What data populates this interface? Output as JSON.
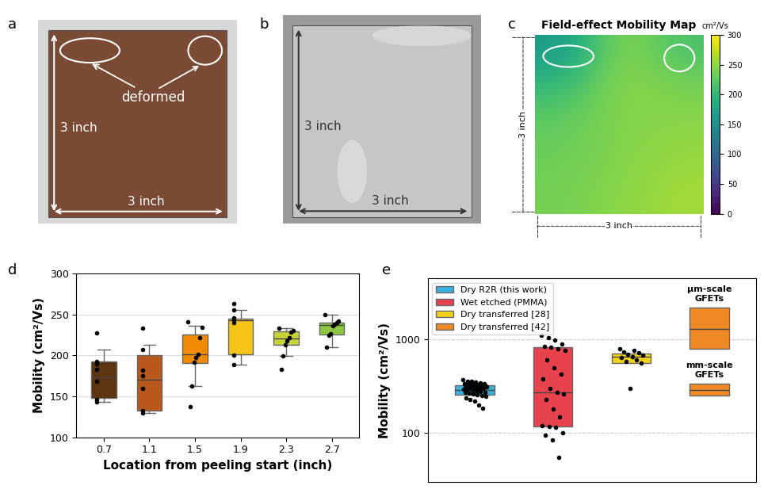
{
  "chart_data": [
    {
      "type": "image",
      "panel": "a",
      "color": "#7b4a35",
      "defect_label": "deformed",
      "height_label": "3 inch",
      "width_label": "3 inch"
    },
    {
      "type": "image",
      "panel": "b",
      "color": "#c6c6c6",
      "height_label": "3 inch",
      "width_label": "3 inch"
    },
    {
      "type": "heatmap",
      "panel": "c",
      "title": "Field-effect Mobility Map",
      "colorbar_label": "cm²/Vs",
      "height_label": "3 inch",
      "width_label": "3 inch",
      "cells": [
        [
          165,
          185,
          225,
          240,
          225,
          215
        ],
        [
          195,
          210,
          235,
          245,
          240,
          235
        ],
        [
          220,
          228,
          240,
          245,
          245,
          245
        ],
        [
          230,
          235,
          240,
          245,
          248,
          250
        ],
        [
          235,
          238,
          242,
          248,
          252,
          255
        ],
        [
          238,
          240,
          245,
          250,
          255,
          258
        ]
      ],
      "colorbar_range": [
        0,
        300
      ],
      "colorbar_ticks": [
        0,
        50,
        100,
        150,
        200,
        250,
        300
      ]
    },
    {
      "type": "box",
      "panel": "d",
      "xlabel": "Location from peeling start (inch)",
      "ylabel": "Mobility (cm²/Vs)",
      "categories": [
        "0.7",
        "1.1",
        "1.5",
        "1.9",
        "2.3",
        "2.7"
      ],
      "colors": [
        "#5c3410",
        "#b8581c",
        "#f08a00",
        "#f5c518",
        "#c8d436",
        "#8cc63f"
      ],
      "boxes": [
        {
          "q1": 148,
          "median": 173,
          "q3": 193,
          "whisker_low": 143,
          "whisker_high": 207,
          "points": [
            227,
            193,
            190,
            183,
            168,
            146,
            143
          ]
        },
        {
          "q1": 133,
          "median": 170,
          "q3": 200,
          "whisker_low": 130,
          "whisker_high": 213,
          "points": [
            233,
            207,
            182,
            175,
            160,
            133,
            130
          ]
        },
        {
          "q1": 191,
          "median": 201,
          "q3": 225,
          "whisker_low": 163,
          "whisker_high": 236,
          "points": [
            241,
            234,
            222,
            201,
            197,
            192,
            163,
            137
          ]
        },
        {
          "q1": 201,
          "median": 243,
          "q3": 245,
          "whisker_low": 189,
          "whisker_high": 255,
          "points": [
            263,
            255,
            246,
            244,
            240,
            200,
            189
          ]
        },
        {
          "q1": 213,
          "median": 221,
          "q3": 229,
          "whisker_low": 199,
          "whisker_high": 233,
          "points": [
            233,
            230,
            228,
            222,
            218,
            213,
            199,
            183
          ]
        },
        {
          "q1": 225,
          "median": 237,
          "q3": 240,
          "whisker_low": 210,
          "whisker_high": 250,
          "points": [
            250,
            242,
            240,
            238,
            236,
            226,
            224,
            210
          ]
        }
      ],
      "ylim": [
        100,
        300
      ],
      "yticks": [
        100,
        150,
        200,
        250,
        300
      ],
      "grid": true
    },
    {
      "type": "box",
      "panel": "e",
      "ylabel": "Mobility (cm²/Vs)",
      "log": "y",
      "ylim": [
        30,
        4500
      ],
      "yticks": [
        100,
        1000
      ],
      "grid": true,
      "tick_labels": "y",
      "legend": "upper left",
      "series": [
        {
          "name": "Dry R2R (this work)",
          "color": "#3ab0e0",
          "boxes": [
            {
              "q1": 255,
              "median": 290,
              "q3": 325,
              "points": [
                370,
                360,
                355,
                350,
                345,
                340,
                338,
                335,
                332,
                330,
                328,
                325,
                322,
                320,
                318,
                315,
                312,
                310,
                308,
                305,
                302,
                300,
                298,
                295,
                292,
                290,
                285,
                280,
                275,
                270,
                265,
                260,
                255,
                250,
                245,
                240,
                230,
                220,
                200,
                185
              ]
            }
          ]
        },
        {
          "name": "Wet etched (PMMA)",
          "color": "#e8424f",
          "boxes": [
            {
              "q1": 118,
              "median": 275,
              "q3": 820,
              "points": [
                1100,
                1050,
                980,
                900,
                850,
                820,
                800,
                760,
                600,
                500,
                430,
                380,
                300,
                275,
                260,
                230,
                180,
                150,
                120,
                118,
                115,
                100,
                95,
                85,
                55
              ]
            }
          ]
        },
        {
          "name": "Dry transferred [28]",
          "color": "#f5d21a",
          "boxes": [
            {
              "q1": 560,
              "median": 650,
              "q3": 710,
              "points": [
                790,
                760,
                740,
                720,
                700,
                680,
                660,
                640,
                600,
                580,
                560,
                300
              ]
            }
          ]
        },
        {
          "name": "Dry transferred [42]",
          "color": "#f08a24",
          "boxes": [
            {
              "label": "μm-scale\nGFETs",
              "q1": 800,
              "median": 1300,
              "q3": 2200
            },
            {
              "label": "mm-scale\nGFETs",
              "q1": 250,
              "median": 290,
              "q3": 340
            }
          ]
        }
      ]
    }
  ]
}
